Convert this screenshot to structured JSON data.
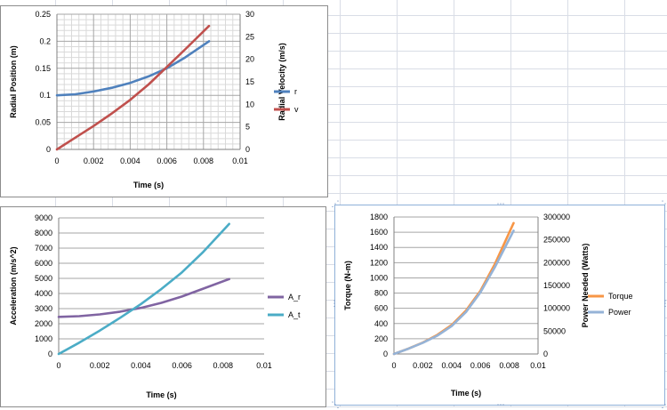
{
  "colors": {
    "sheet_grid": "#d9dde6",
    "r": "#4f81bd",
    "v": "#c0504d",
    "A_r": "#8064a2",
    "A_t": "#4bacc6",
    "Torque": "#f79646",
    "Power": "#95b3d7",
    "plot_grid": "#a6a6a6",
    "axis_text": "#000000"
  },
  "chart_data": [
    {
      "type": "line",
      "xlabel": "Time (s)",
      "ylabel": "Radial Position (m)",
      "y2label": "Radial Velocity (m/s)",
      "xlim": [
        0,
        0.01
      ],
      "ylim": [
        0,
        0.25
      ],
      "y2lim": [
        0,
        30
      ],
      "x_ticks": [
        "0",
        "0.002",
        "0.004",
        "0.006",
        "0.008",
        "0.01"
      ],
      "y_ticks": [
        "0",
        "0.05",
        "0.1",
        "0.15",
        "0.2",
        "0.25"
      ],
      "y2_ticks": [
        "0",
        "5",
        "10",
        "15",
        "20",
        "25",
        "30"
      ],
      "grid": "major and minor gridlines",
      "legend_position": "right",
      "series": [
        {
          "name": "r",
          "axis": "left",
          "x": [
            0,
            0.001,
            0.002,
            0.003,
            0.004,
            0.005,
            0.006,
            0.007,
            0.0083
          ],
          "y": [
            0.1,
            0.102,
            0.107,
            0.114,
            0.123,
            0.135,
            0.15,
            0.17,
            0.2
          ]
        },
        {
          "name": "v",
          "axis": "right",
          "x": [
            0,
            0.001,
            0.002,
            0.003,
            0.004,
            0.005,
            0.006,
            0.007,
            0.0083
          ],
          "y": [
            0,
            2.6,
            5.2,
            8.0,
            11.0,
            14.4,
            18.3,
            22.2,
            27.4
          ]
        }
      ]
    },
    {
      "type": "line",
      "xlabel": "Time (s)",
      "ylabel": "Acceleration (m/s^2)",
      "xlim": [
        0,
        0.01
      ],
      "ylim": [
        0,
        9000
      ],
      "x_ticks": [
        "0",
        "0.002",
        "0.004",
        "0.006",
        "0.008",
        "0.01"
      ],
      "y_ticks": [
        "0",
        "1000",
        "2000",
        "3000",
        "4000",
        "5000",
        "6000",
        "7000",
        "8000",
        "9000"
      ],
      "grid": "horizontal major gridlines",
      "legend_position": "right",
      "series": [
        {
          "name": "A_r",
          "x": [
            0,
            0.001,
            0.002,
            0.003,
            0.004,
            0.005,
            0.006,
            0.007,
            0.0083
          ],
          "y": [
            2450,
            2500,
            2620,
            2800,
            3050,
            3380,
            3800,
            4300,
            4950
          ]
        },
        {
          "name": "A_t",
          "x": [
            0,
            0.001,
            0.002,
            0.003,
            0.004,
            0.005,
            0.006,
            0.007,
            0.0083
          ],
          "y": [
            0,
            750,
            1550,
            2400,
            3300,
            4300,
            5400,
            6700,
            8600
          ]
        }
      ]
    },
    {
      "type": "line",
      "xlabel": "Time (s)",
      "ylabel": "Torque (N-m)",
      "y2label": "Power Needed (Watts)",
      "xlim": [
        0,
        0.01
      ],
      "ylim": [
        0,
        1800
      ],
      "y2lim": [
        0,
        300000
      ],
      "x_ticks": [
        "0",
        "0.002",
        "0.004",
        "0.006",
        "0.008",
        "0.01"
      ],
      "y_ticks": [
        "0",
        "200",
        "400",
        "600",
        "800",
        "1000",
        "1200",
        "1400",
        "1600",
        "1800"
      ],
      "y2_ticks": [
        "0",
        "50000",
        "100000",
        "150000",
        "200000",
        "250000",
        "300000"
      ],
      "grid": "horizontal major gridlines",
      "legend_position": "right",
      "series": [
        {
          "name": "Torque",
          "axis": "left",
          "x": [
            0,
            0.001,
            0.002,
            0.003,
            0.004,
            0.005,
            0.006,
            0.007,
            0.0083
          ],
          "y": [
            0,
            70,
            150,
            250,
            380,
            570,
            830,
            1180,
            1720
          ]
        },
        {
          "name": "Power",
          "axis": "right",
          "x": [
            0,
            0.001,
            0.002,
            0.003,
            0.004,
            0.005,
            0.006,
            0.007,
            0.0083
          ],
          "y": [
            0,
            11500,
            24500,
            40000,
            61000,
            92000,
            135000,
            190000,
            270000
          ]
        }
      ]
    }
  ]
}
